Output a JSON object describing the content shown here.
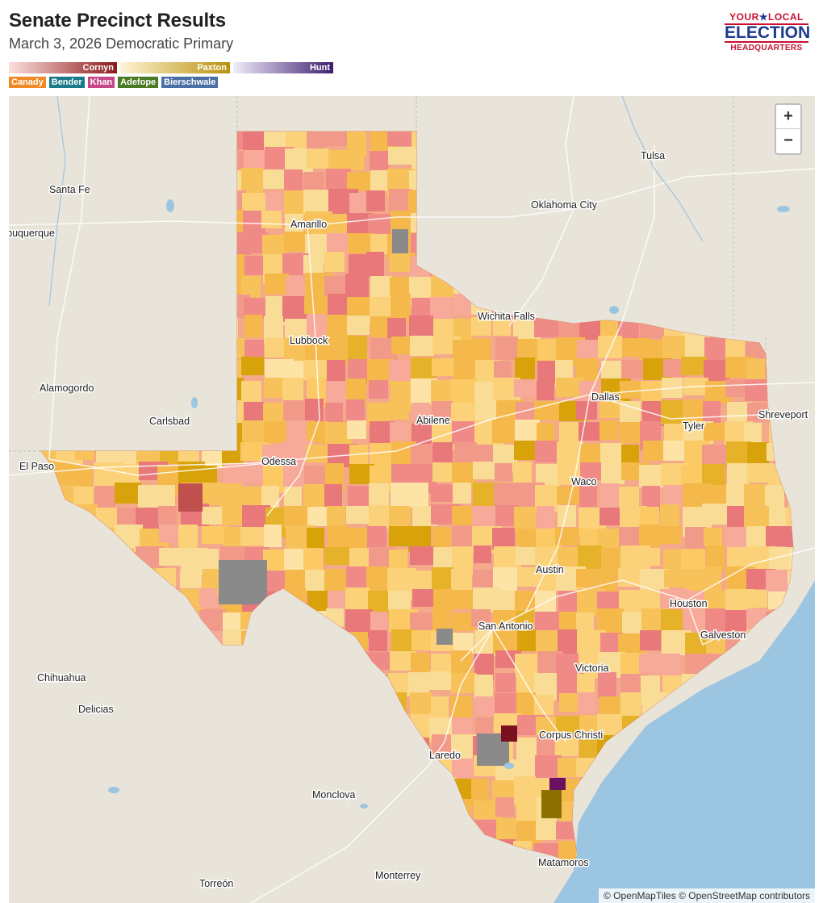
{
  "header": {
    "title": "Senate Precinct Results",
    "subtitle": "March 3, 2026 Democratic Primary"
  },
  "legend": {
    "ramps": [
      {
        "label": "Cornyn",
        "from": "#fde0dd",
        "to": "#8b1a1a"
      },
      {
        "label": "Paxton",
        "from": "#fff5d6",
        "to": "#b8900a"
      },
      {
        "label": "Hunt",
        "from": "#f2ecfb",
        "to": "#3d1f6e"
      }
    ],
    "chips": [
      {
        "label": "Canady",
        "color": "#f08a24"
      },
      {
        "label": "Bender",
        "color": "#1a7a8a"
      },
      {
        "label": "Khan",
        "color": "#c4478a"
      },
      {
        "label": "Adefope",
        "color": "#4a7a23"
      },
      {
        "label": "Bierschwale",
        "color": "#4a6fa5"
      }
    ]
  },
  "logo": {
    "line1a": "YOUR",
    "star": "★",
    "line1b": "LOCAL",
    "line2": "ELECTION",
    "line3": "HEADQUARTERS"
  },
  "map": {
    "zoom_in": "+",
    "zoom_out": "−",
    "attribution": "© OpenMapTiles © OpenStreetMap contributors",
    "colors": {
      "land": "#e9e4d9",
      "water": "#9cc5e2",
      "cornyn": "#ef8a87",
      "paxton": "#fbcd5b",
      "no_data": "#8a8a8a"
    },
    "cities": [
      {
        "name": "Santa Fe"
      },
      {
        "name": "Albuquerque"
      },
      {
        "name": "Tulsa"
      },
      {
        "name": "Oklahoma City"
      },
      {
        "name": "Amarillo"
      },
      {
        "name": "Wichita Falls"
      },
      {
        "name": "Lubbock"
      },
      {
        "name": "Alamogordo"
      },
      {
        "name": "Carlsbad"
      },
      {
        "name": "Dallas"
      },
      {
        "name": "Abilene"
      },
      {
        "name": "Tyler"
      },
      {
        "name": "Shreveport"
      },
      {
        "name": "El Paso"
      },
      {
        "name": "Odessa"
      },
      {
        "name": "Waco"
      },
      {
        "name": "Austin"
      },
      {
        "name": "Houston"
      },
      {
        "name": "San Antonio"
      },
      {
        "name": "Galveston"
      },
      {
        "name": "Chihuahua"
      },
      {
        "name": "Victoria"
      },
      {
        "name": "Delicias"
      },
      {
        "name": "Corpus Christi"
      },
      {
        "name": "Laredo"
      },
      {
        "name": "Monclova"
      },
      {
        "name": "Matamoros"
      },
      {
        "name": "Monterrey"
      },
      {
        "name": "Torreón"
      }
    ]
  }
}
